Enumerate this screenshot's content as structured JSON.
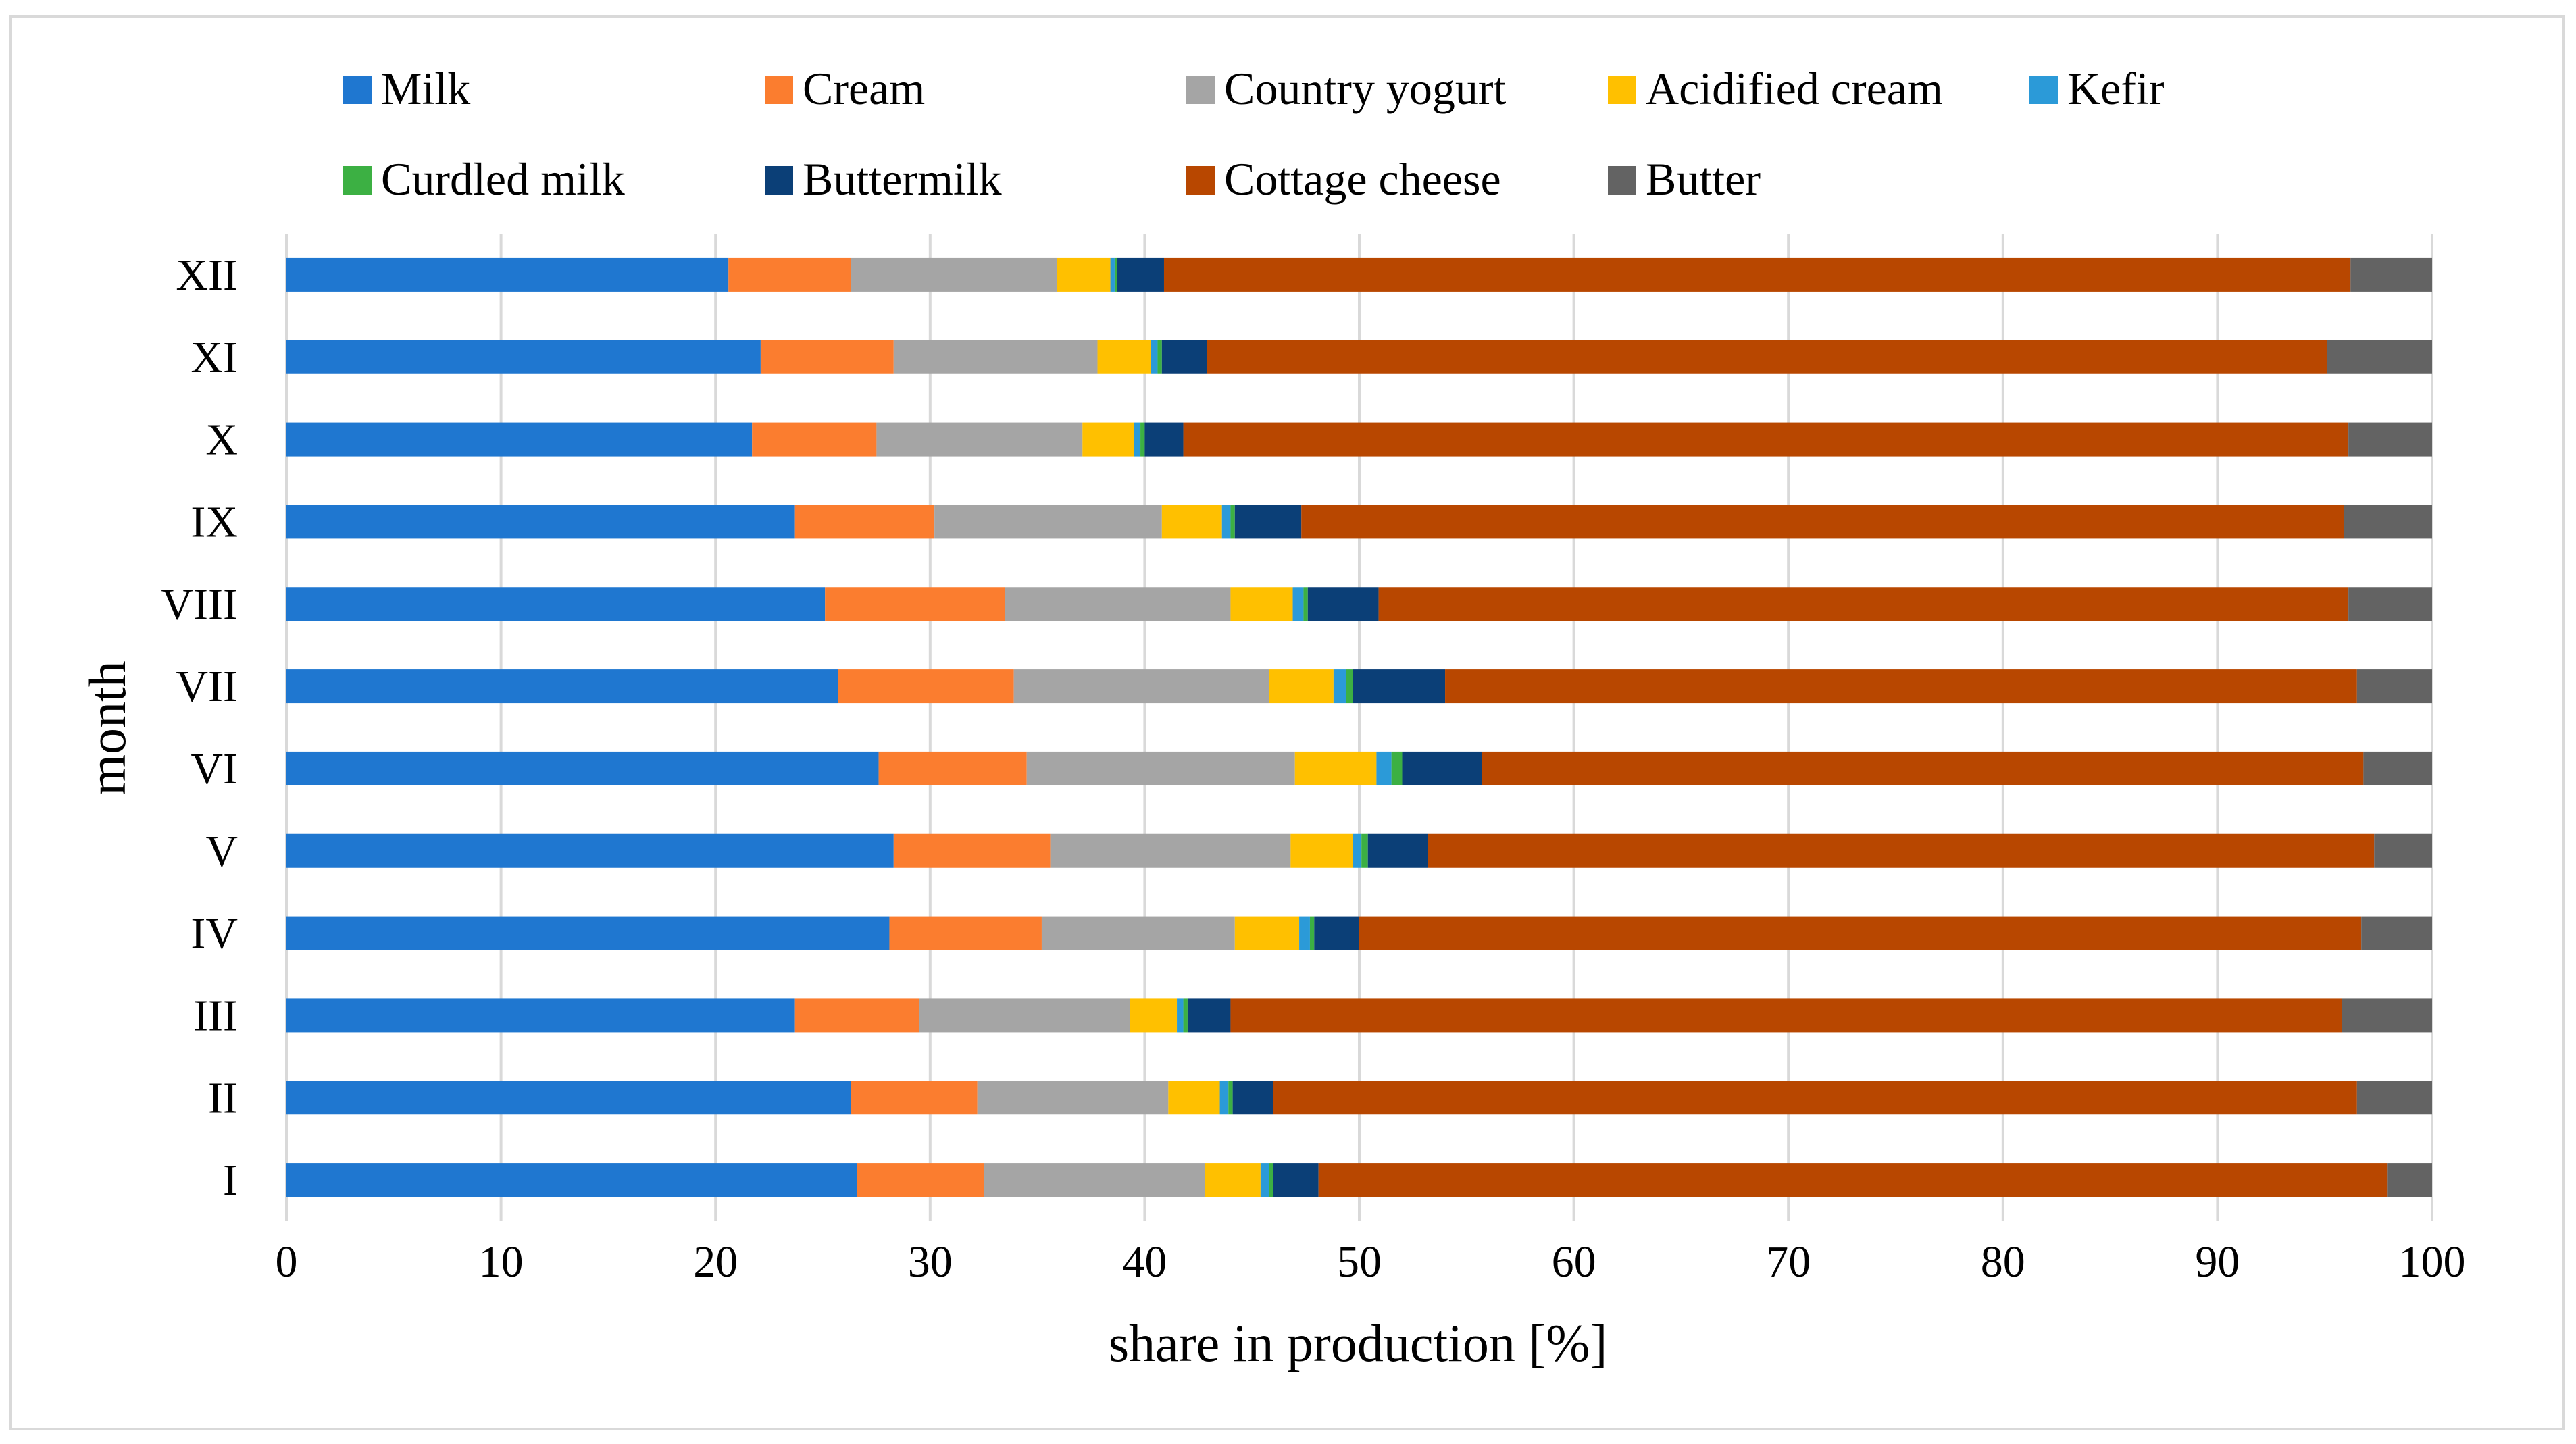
{
  "chart_data": {
    "type": "bar",
    "orientation": "horizontal",
    "stacked": true,
    "title": "",
    "xlabel": "share in production [%]",
    "ylabel": "month",
    "xlim": [
      0,
      100
    ],
    "xticks": [
      "0",
      "10",
      "20",
      "30",
      "40",
      "50",
      "60",
      "70",
      "80",
      "90",
      "100"
    ],
    "grid": true,
    "legend_position": "top",
    "categories": [
      "I",
      "II",
      "III",
      "IV",
      "V",
      "VI",
      "VII",
      "VIII",
      "IX",
      "X",
      "XI",
      "XII"
    ],
    "series": [
      {
        "name": "Milk",
        "color": "#1f77d0",
        "values": [
          26.6,
          26.3,
          23.7,
          28.1,
          28.3,
          27.6,
          25.7,
          25.1,
          23.7,
          21.7,
          22.1,
          20.6
        ]
      },
      {
        "name": "Cream",
        "color": "#fb7d2f",
        "values": [
          5.9,
          5.9,
          5.8,
          7.1,
          7.3,
          6.9,
          8.2,
          8.4,
          6.5,
          5.8,
          6.2,
          5.7
        ]
      },
      {
        "name": "Country yogurt",
        "color": "#a5a5a5",
        "values": [
          10.3,
          8.9,
          9.8,
          9.0,
          11.2,
          12.5,
          11.9,
          10.5,
          10.6,
          9.6,
          9.5,
          9.6
        ]
      },
      {
        "name": "Acidified cream",
        "color": "#ffc000",
        "values": [
          2.6,
          2.4,
          2.2,
          3.0,
          2.9,
          3.8,
          3.0,
          2.9,
          2.8,
          2.4,
          2.5,
          2.5
        ]
      },
      {
        "name": "Kefir",
        "color": "#2b9ad8",
        "values": [
          0.4,
          0.4,
          0.3,
          0.5,
          0.4,
          0.7,
          0.6,
          0.5,
          0.4,
          0.3,
          0.3,
          0.2
        ]
      },
      {
        "name": "Curdled milk",
        "color": "#3cb043",
        "values": [
          0.2,
          0.2,
          0.2,
          0.2,
          0.3,
          0.5,
          0.3,
          0.2,
          0.2,
          0.2,
          0.2,
          0.1
        ]
      },
      {
        "name": "Buttermilk",
        "color": "#0b3f77",
        "values": [
          2.1,
          1.9,
          2.0,
          2.1,
          2.8,
          3.7,
          4.3,
          3.3,
          3.1,
          1.8,
          2.1,
          2.2
        ]
      },
      {
        "name": "Cottage cheese",
        "color": "#b84700",
        "values": [
          49.8,
          50.5,
          51.8,
          46.7,
          44.1,
          41.1,
          42.5,
          45.2,
          48.6,
          54.3,
          52.2,
          55.3
        ]
      },
      {
        "name": "Butter",
        "color": "#636363",
        "values": [
          2.1,
          3.5,
          4.2,
          3.3,
          2.7,
          3.2,
          3.5,
          3.9,
          4.1,
          3.9,
          4.9,
          3.8
        ]
      }
    ]
  }
}
